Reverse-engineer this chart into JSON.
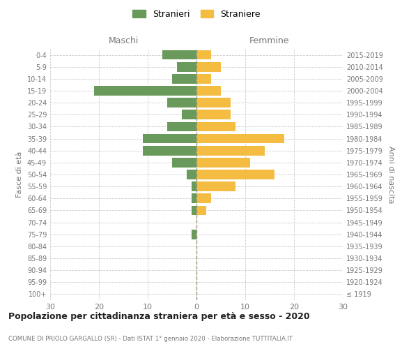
{
  "age_groups": [
    "100+",
    "95-99",
    "90-94",
    "85-89",
    "80-84",
    "75-79",
    "70-74",
    "65-69",
    "60-64",
    "55-59",
    "50-54",
    "45-49",
    "40-44",
    "35-39",
    "30-34",
    "25-29",
    "20-24",
    "15-19",
    "10-14",
    "5-9",
    "0-4"
  ],
  "birth_years": [
    "≤ 1919",
    "1920-1924",
    "1925-1929",
    "1930-1934",
    "1935-1939",
    "1940-1944",
    "1945-1949",
    "1950-1954",
    "1955-1959",
    "1960-1964",
    "1965-1969",
    "1970-1974",
    "1975-1979",
    "1980-1984",
    "1985-1989",
    "1990-1994",
    "1995-1999",
    "2000-2004",
    "2005-2009",
    "2010-2014",
    "2015-2019"
  ],
  "males": [
    0,
    0,
    0,
    0,
    0,
    1,
    0,
    1,
    1,
    1,
    2,
    5,
    11,
    11,
    6,
    3,
    6,
    21,
    5,
    4,
    7
  ],
  "females": [
    0,
    0,
    0,
    0,
    0,
    0,
    0,
    2,
    3,
    8,
    16,
    11,
    14,
    18,
    8,
    7,
    7,
    5,
    3,
    5,
    3
  ],
  "male_color": "#6a9a5b",
  "female_color": "#f5bc42",
  "male_label": "Stranieri",
  "female_label": "Straniere",
  "xlabel_left": "Maschi",
  "xlabel_right": "Femmine",
  "ylabel_left": "Fasce di età",
  "ylabel_right": "Anni di nascita",
  "title_main": "Popolazione per cittadinanza straniera per età e sesso - 2020",
  "title_sub": "COMUNE DI PRIOLO GARGALLO (SR) - Dati ISTAT 1° gennaio 2020 - Elaborazione TUTTITALIA.IT",
  "xlim": 30,
  "background_color": "#ffffff",
  "grid_color": "#cccccc",
  "bar_height": 0.8
}
